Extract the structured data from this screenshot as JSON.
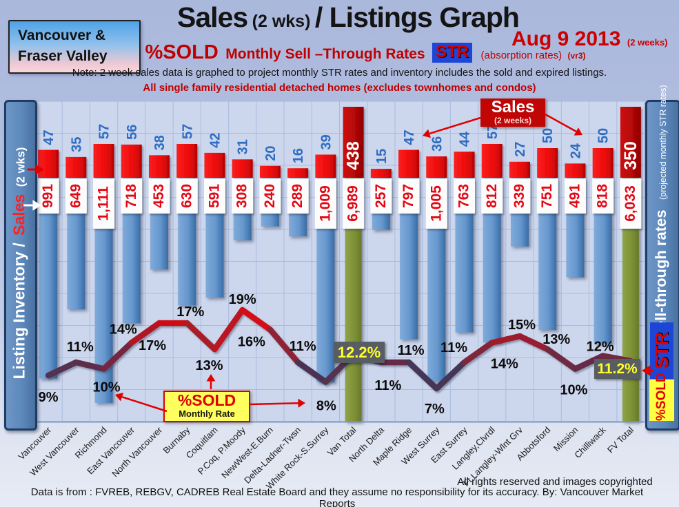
{
  "header": {
    "region_line1": "Vancouver &",
    "region_line2": "Fraser Valley",
    "title_main": "Sales",
    "title_paren": "(2 wks)",
    "title_rest": "/ Listings Graph",
    "date": "Aug 9 2013",
    "date_paren": "(2 weeks)",
    "subtitle": {
      "sold": "%SOLD",
      "phrase": "Monthly Sell –Through Rates",
      "str_badge": "STR",
      "absorption": "(absorption rates)",
      "version": "(vr3)"
    },
    "note": "Note: 2 week sales data is graphed to project monthly STR rates and inventory includes the sold and expired listings.",
    "scope_note": "All single family residential detached homes (excludes townhomes and condos)"
  },
  "left_axis": {
    "part1": "Listing Inventory /",
    "part2": "Sales",
    "part3": "(2  wks)"
  },
  "right_axis": {
    "main": "Sell-through rates",
    "sub": "(projected monthly STR rates)",
    "str_badge": "STR",
    "sold_badge": "%SOLD"
  },
  "annotations": {
    "sales_callout": {
      "title": "Sales",
      "sub": "(2 weeks)"
    },
    "sold_callout": {
      "title": "%SOLD",
      "sub": "Monthly Rate"
    },
    "van_total_rate": "12.2%",
    "fv_total_rate": "11.2%"
  },
  "footer": {
    "rights": "All rights reserved and  images copyrighted",
    "source": "Data is from : FVREB, REBGV, CADREB Real Estate Board and they assume no responsibility for its accuracy. By: Vancouver Market Reports"
  },
  "chart_data": {
    "type": "bar+line",
    "title": "Sales (2 wks)/ Listings Graph",
    "categories": [
      "Vancouver",
      "West Vancouver",
      "Richmond",
      "East Vancouver",
      "North Vancouver",
      "Burnaby",
      "Coquitlam",
      "P.Coq, P.Moody",
      "NewWest-E.Burn",
      "Delta-Ladner-Twsn",
      "White Rock-S.Surrey",
      "Van Total",
      "North Delta",
      "Maple Ridge",
      "West Surrey",
      "East Surrey",
      "Langley,Clvrdl",
      "Ft Langley-Wlnt Grv",
      "Abbotsford",
      "Mission",
      "Chilliwack",
      "FV Total"
    ],
    "series": [
      {
        "name": "Sales (2 weeks)",
        "type": "bar",
        "values": [
          47,
          35,
          57,
          56,
          38,
          57,
          42,
          31,
          20,
          16,
          39,
          438,
          15,
          47,
          36,
          44,
          57,
          27,
          50,
          24,
          50,
          350
        ]
      },
      {
        "name": "Listing Inventory",
        "type": "bar",
        "values": [
          991,
          649,
          1111,
          718,
          453,
          630,
          591,
          308,
          240,
          289,
          1009,
          6989,
          257,
          797,
          1005,
          763,
          812,
          339,
          751,
          491,
          818,
          6033
        ],
        "labels": [
          "991",
          "649",
          "1,111",
          "718",
          "453",
          "630",
          "591",
          "308",
          "240",
          "289",
          "1,009",
          "6,989",
          "257",
          "797",
          "1,005",
          "763",
          "812",
          "339",
          "751",
          "491",
          "818",
          "6,033"
        ]
      },
      {
        "name": "%SOLD monthly sell-through rate (STR)",
        "type": "line",
        "values": [
          9,
          11,
          10,
          14,
          17,
          17,
          13,
          19,
          16,
          11,
          8,
          12.2,
          11,
          11,
          7,
          11,
          14,
          15,
          13,
          10,
          12,
          11.2
        ],
        "labels": [
          "9%",
          "11%",
          "10%",
          "14%",
          "17%",
          "17%",
          "13%",
          "19%",
          "16%",
          "11%",
          "8%",
          "12.2%",
          "11%",
          "11%",
          "7%",
          "11%",
          "14%",
          "15%",
          "13%",
          "10%",
          "12%",
          "11.2%"
        ]
      }
    ],
    "totals_indices": [
      11,
      21
    ],
    "line_range_pct": [
      7,
      19
    ],
    "grid": true,
    "colors": {
      "sales_bar": "#ee0a0a",
      "totals_sales_bar": "#b50707",
      "inventory_bar": "#6697cd",
      "totals_inventory_bar": "#7d8f33",
      "sales_count_text": "#2e6cc2",
      "inventory_text": "#e30613",
      "line_low": "#2a3c63",
      "line_high": "#ee0808",
      "rate_box_bg": "#585d63",
      "rate_box_text": "#ffff2e",
      "plot_bg": "#ccd6ec",
      "grid_line": "#a7badd"
    }
  }
}
